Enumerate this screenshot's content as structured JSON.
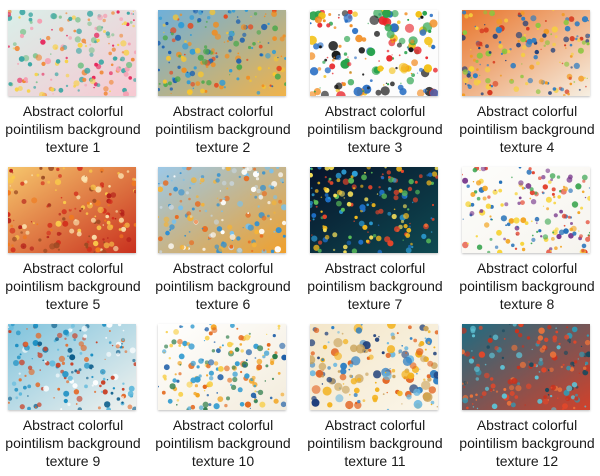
{
  "thumbnails": [
    {
      "line1": "Abstract colorful",
      "line2": "pointilism background",
      "line3": "texture 1",
      "bg": "#f4e6e9",
      "palette": [
        "#e6245a",
        "#f59fb2",
        "#f7d24a",
        "#3aa6a3",
        "#7cc28c",
        "#f08a3a"
      ],
      "grad": [
        "#d9efe9",
        "#f7c9d2"
      ]
    },
    {
      "line1": "Abstract colorful",
      "line2": "pointilism background",
      "line3": "texture 2",
      "bg": "#eef2f0",
      "palette": [
        "#1b5fb0",
        "#2f9bd6",
        "#f7c531",
        "#e34a22",
        "#4aa84a",
        "#f28c1f"
      ],
      "grad": [
        "#6fb0d9",
        "#f0b34a"
      ]
    },
    {
      "line1": "Abstract colorful",
      "line2": "pointilism background",
      "line3": "texture 3",
      "bg": "#ffffff",
      "palette": [
        "#111111",
        "#e7242a",
        "#2a6fc4",
        "#f3c21a",
        "#27a24a",
        "#f28c1f"
      ],
      "grad": [
        "#ffffff",
        "#fbfbfb"
      ]
    },
    {
      "line1": "Abstract colorful",
      "line2": "pointilism background",
      "line3": "texture 4",
      "bg": "#f3d7a6",
      "palette": [
        "#d63a1f",
        "#f29a1e",
        "#f6d23a",
        "#2f7cc1",
        "#1a3c7a",
        "#8cc63f"
      ],
      "grad": [
        "#e8742a",
        "#f6efe2"
      ]
    },
    {
      "line1": "Abstract colorful",
      "line2": "pointilism background",
      "line3": "texture 5",
      "bg": "#f1a84a",
      "palette": [
        "#d22e1c",
        "#f07a1e",
        "#f9c84a",
        "#b31f1a",
        "#fbe4b0",
        "#9b4a22"
      ],
      "grad": [
        "#f6c66c",
        "#c9301e"
      ]
    },
    {
      "line1": "Abstract colorful",
      "line2": "pointilism background",
      "line3": "texture 6",
      "bg": "#e9eef2",
      "palette": [
        "#2f8fd2",
        "#7cc0e8",
        "#f3b339",
        "#e96a1e",
        "#ffffff",
        "#c8d6df"
      ],
      "grad": [
        "#9cc9e8",
        "#f0a02c"
      ]
    },
    {
      "line1": "Abstract colorful",
      "line2": "pointilism background",
      "line3": "texture 7",
      "bg": "#0a1a2a",
      "palette": [
        "#f0b81e",
        "#2fa5e0",
        "#e7452a",
        "#5cc05a",
        "#1e6fc6",
        "#f6e05a"
      ],
      "grad": [
        "#07132a",
        "#0f4a52"
      ]
    },
    {
      "line1": "Abstract colorful",
      "line2": "pointilism background",
      "line3": "texture 8",
      "bg": "#fbfbf8",
      "palette": [
        "#e2402a",
        "#f2a31e",
        "#1e6cb6",
        "#3aa550",
        "#f7d43a",
        "#7a3a8c"
      ],
      "grad": [
        "#fdfdfb",
        "#f6f4ee"
      ]
    },
    {
      "line1": "Abstract colorful",
      "line2": "pointilism background",
      "line3": "texture 9",
      "bg": "#dcedf3",
      "palette": [
        "#1b8fc2",
        "#5fb9dc",
        "#e36a2a",
        "#c9432a",
        "#ffffff",
        "#0e5f8c"
      ],
      "grad": [
        "#7fc3dd",
        "#f2f2ee"
      ]
    },
    {
      "line1": "Abstract colorful",
      "line2": "pointilism background",
      "line3": "texture 10",
      "bg": "#fbfaf5",
      "palette": [
        "#f2a31e",
        "#1f5fa8",
        "#e46a1f",
        "#3a9fd1",
        "#2e7d4a",
        "#f7cf4a"
      ],
      "grad": [
        "#ffffff",
        "#f3ecdc"
      ]
    },
    {
      "line1": "Abstract colorful",
      "line2": "pointilism background",
      "line3": "texture 11",
      "bg": "#f6efe0",
      "palette": [
        "#2f7fc4",
        "#f2b21e",
        "#e2621f",
        "#6ab7e0",
        "#c9a25a",
        "#1f3f7a"
      ],
      "grad": [
        "#f3e6c9",
        "#fbf6ea"
      ]
    },
    {
      "line1": "Abstract colorful",
      "line2": "pointilism background",
      "line3": "texture 12",
      "bg": "#2a6f86",
      "palette": [
        "#2f9bb5",
        "#e2472a",
        "#c7331f",
        "#5ec0d2",
        "#1a4a5e",
        "#f0743a"
      ],
      "grad": [
        "#1d6b82",
        "#d2412a"
      ]
    }
  ]
}
